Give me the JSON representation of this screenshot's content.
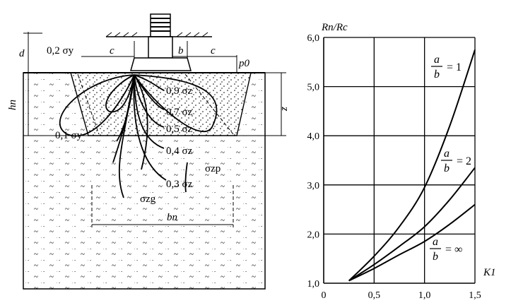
{
  "diagram": {
    "labels": {
      "d": "d",
      "h_n": "hп",
      "c_left": "c",
      "c_right": "c",
      "b": "b",
      "p0": "p0",
      "z": "z",
      "b_n": "bп",
      "sigma_y_02": "0,2 σy",
      "sigma_y_01": "0,1 σy",
      "sigma_z_09": "0,9 σz",
      "sigma_z_07": "0,7 σz",
      "sigma_z_05": "0,5 σz",
      "sigma_z_04": "0,4 σz",
      "sigma_z_03": "0,3 σz",
      "sigma_zp": "σzp",
      "sigma_zg": "σzg"
    }
  },
  "chart_data": {
    "type": "line",
    "ylabel": "Rп/Rс",
    "xlabel": "K1",
    "xlim": [
      0,
      1.5
    ],
    "ylim": [
      1.0,
      6.0
    ],
    "x_ticks": [
      "0",
      "0,5",
      "1,0",
      "1,5"
    ],
    "y_ticks": [
      "1,0",
      "2,0",
      "3,0",
      "4,0",
      "5,0",
      "6,0"
    ],
    "grid": true,
    "series": [
      {
        "name": "a/b = 1",
        "x": [
          0.25,
          0.5,
          0.75,
          1.0,
          1.25,
          1.5
        ],
        "y": [
          1.05,
          1.55,
          2.15,
          2.95,
          4.2,
          5.75
        ]
      },
      {
        "name": "a/b = 2",
        "x": [
          0.25,
          0.5,
          0.75,
          1.0,
          1.25,
          1.5
        ],
        "y": [
          1.05,
          1.38,
          1.75,
          2.15,
          2.7,
          3.35
        ]
      },
      {
        "name": "a/b = ∞",
        "x": [
          0.25,
          0.5,
          0.75,
          1.0,
          1.25,
          1.5
        ],
        "y": [
          1.05,
          1.3,
          1.58,
          1.85,
          2.2,
          2.6
        ]
      }
    ],
    "curve_labels": [
      {
        "num": "a",
        "den": "b",
        "rhs": "= 1"
      },
      {
        "num": "a",
        "den": "b",
        "rhs": "= 2"
      },
      {
        "num": "a",
        "den": "b",
        "rhs": "= ∞"
      }
    ]
  }
}
